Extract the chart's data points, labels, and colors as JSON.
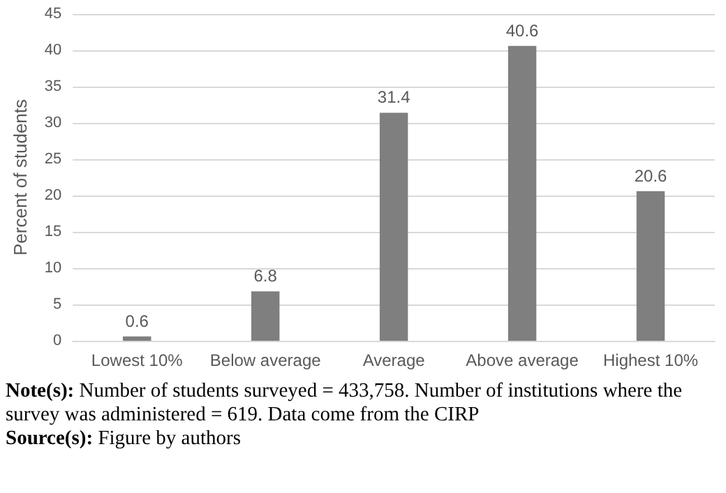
{
  "chart_data": {
    "type": "bar",
    "ylabel": "Percent of students",
    "categories": [
      "Lowest 10%",
      "Below average",
      "Average",
      "Above average",
      "Highest 10%"
    ],
    "values": [
      0.6,
      6.8,
      31.4,
      40.6,
      20.6
    ],
    "color": "#7f7f7f",
    "ylim": [
      0,
      45
    ],
    "yticks": [
      0,
      5,
      10,
      15,
      20,
      25,
      30,
      35,
      40,
      45
    ],
    "grid": "y",
    "data_labels": true,
    "annotations": [
      "Note(s): Number of students surveyed = 433,758. Number of institutions where the survey was administered = 619. Data come from the CIRP",
      "Source(s): Figure by authors"
    ]
  }
}
